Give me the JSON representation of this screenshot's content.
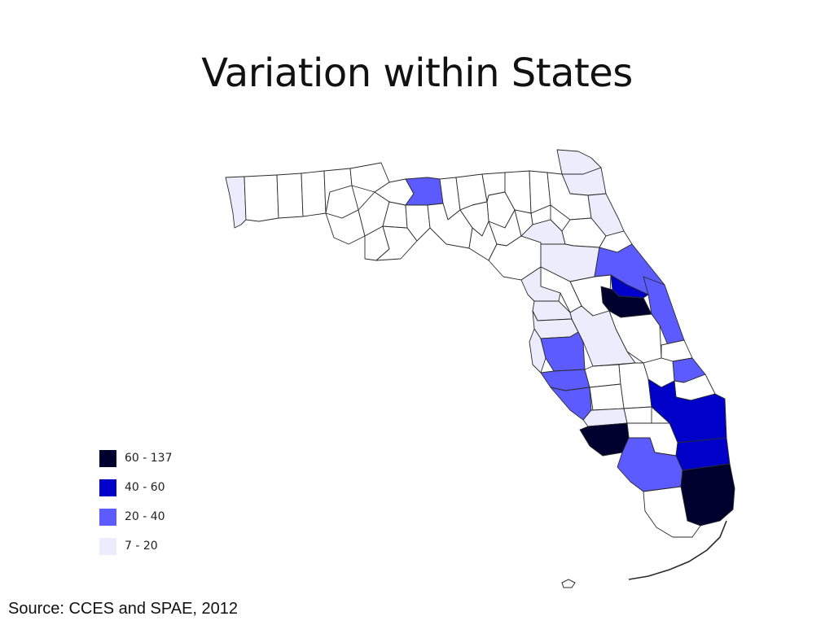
{
  "title": "Variation within States",
  "source": "Source:  CCES and SPAE, 2012",
  "colors": {
    "bin_60_137": "#00002e",
    "bin_40_60": "#0000c8",
    "bin_20_40": "#5b5bff",
    "bin_7_20": "#ececfc",
    "no_data": "#ffffff",
    "border": "#2a2a2a"
  },
  "legend": [
    {
      "label": "60 - 137",
      "color": "#00002e"
    },
    {
      "label": "40 - 60",
      "color": "#0000c8"
    },
    {
      "label": "20 - 40",
      "color": "#5b5bff"
    },
    {
      "label": "7 - 20",
      "color": "#ececfc"
    }
  ],
  "map": {
    "region": "Florida",
    "unit": "county",
    "shaded_counties": [
      {
        "county": "Escambia",
        "bin": "7 - 20"
      },
      {
        "county": "Leon",
        "bin": "20 - 40"
      },
      {
        "county": "Nassau",
        "bin": "7 - 20"
      },
      {
        "county": "Duval",
        "bin": "7 - 20"
      },
      {
        "county": "St. Johns",
        "bin": "7 - 20"
      },
      {
        "county": "Alachua",
        "bin": "7 - 20"
      },
      {
        "county": "Marion",
        "bin": "7 - 20"
      },
      {
        "county": "Citrus",
        "bin": "7 - 20"
      },
      {
        "county": "Hernando",
        "bin": "7 - 20"
      },
      {
        "county": "Pasco",
        "bin": "7 - 20"
      },
      {
        "county": "Pinellas",
        "bin": "7 - 20"
      },
      {
        "county": "Polk",
        "bin": "7 - 20"
      },
      {
        "county": "Collier-north strip",
        "bin": "7 - 20"
      },
      {
        "county": "Volusia",
        "bin": "20 - 40"
      },
      {
        "county": "Brevard",
        "bin": "20 - 40"
      },
      {
        "county": "Hillsborough",
        "bin": "20 - 40"
      },
      {
        "county": "Manatee",
        "bin": "20 - 40"
      },
      {
        "county": "Sarasota",
        "bin": "20 - 40"
      },
      {
        "county": "St. Lucie",
        "bin": "20 - 40"
      },
      {
        "county": "Collier",
        "bin": "20 - 40"
      },
      {
        "county": "Seminole",
        "bin": "40 - 60"
      },
      {
        "county": "Palm Beach",
        "bin": "40 - 60"
      },
      {
        "county": "Broward",
        "bin": "40 - 60"
      },
      {
        "county": "Orange",
        "bin": "60 - 137"
      },
      {
        "county": "Lee",
        "bin": "60 - 137"
      },
      {
        "county": "Miami-Dade",
        "bin": "60 - 137"
      }
    ]
  }
}
